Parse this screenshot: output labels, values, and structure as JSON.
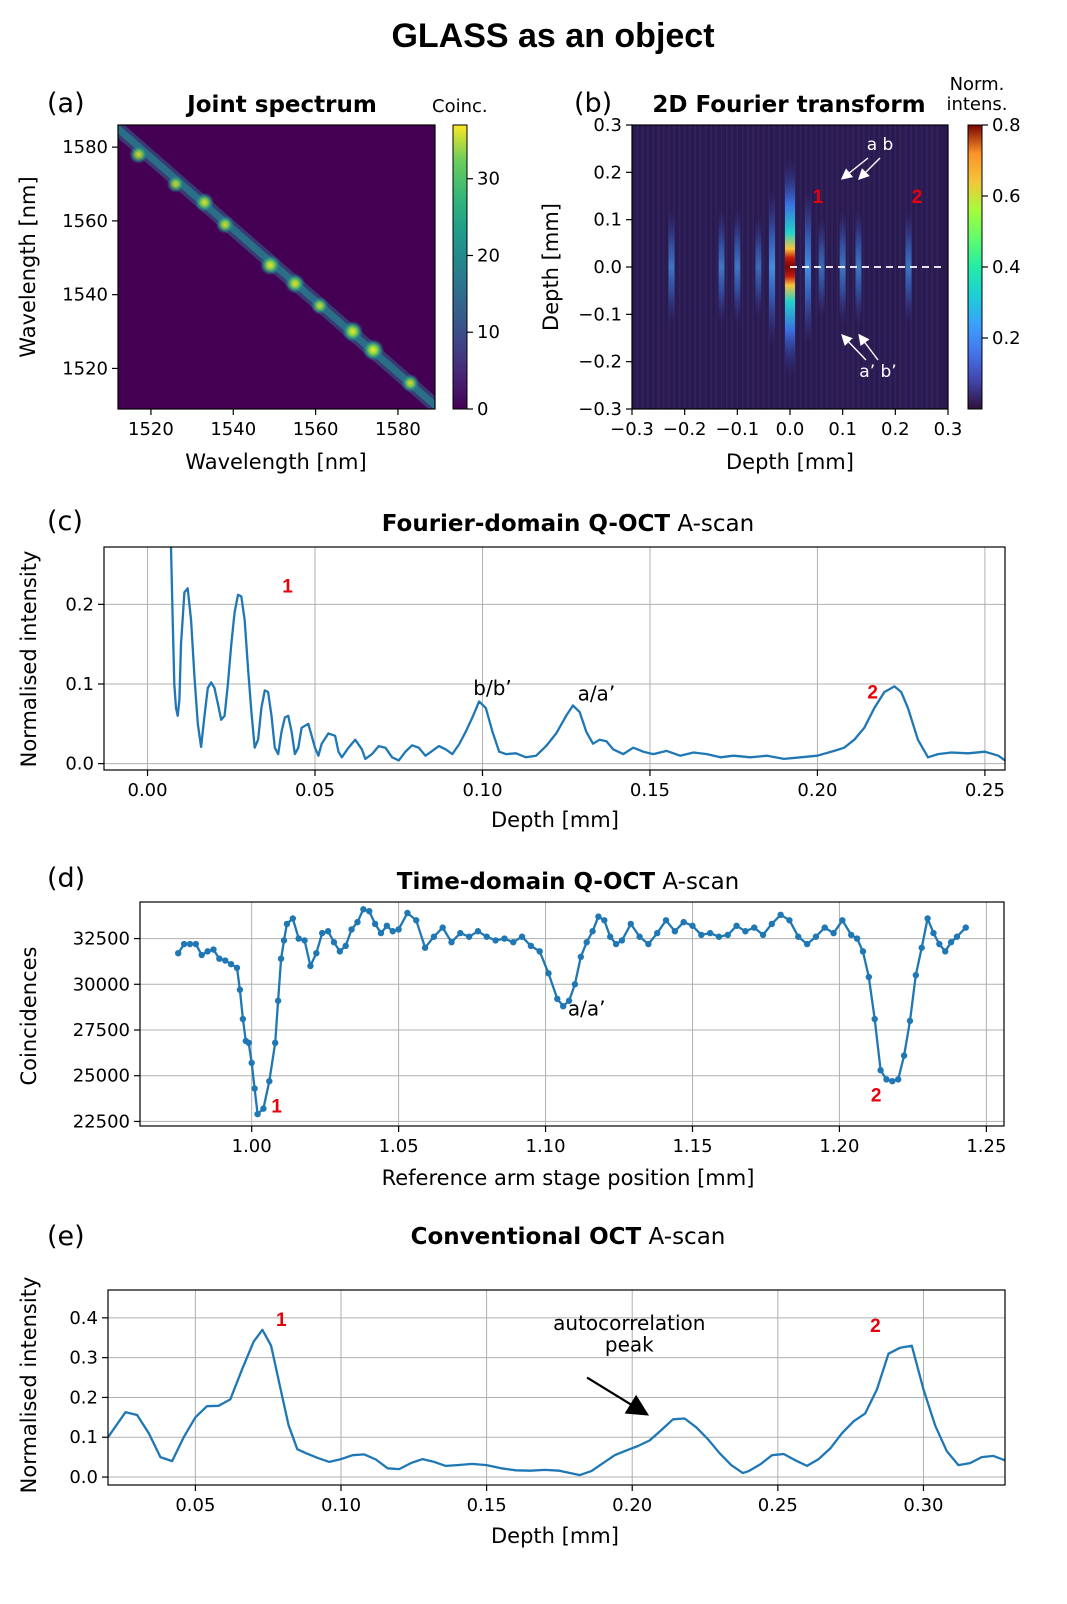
{
  "figure_title": "GLASS as an object",
  "chart_data": [
    {
      "panel": "(a)",
      "type": "heatmap",
      "title": "Joint spectrum",
      "xlabel": "Wavelength [nm]",
      "ylabel": "Wavelength [nm]",
      "xlim": [
        1512,
        1589
      ],
      "ylim": [
        1509,
        1586
      ],
      "xticks": [
        1520,
        1540,
        1560,
        1580
      ],
      "yticks": [
        1520,
        1540,
        1560,
        1580
      ],
      "colorbar": {
        "label": "Coinc.",
        "range": [
          0,
          37
        ],
        "ticks": [
          0,
          10,
          20,
          30
        ],
        "colormap": "viridis"
      },
      "description": "anti-diagonal band of coincidences",
      "band": {
        "from": [
          1512,
          1585
        ],
        "to": [
          1589,
          1510
        ]
      },
      "hotspots": [
        {
          "x": 1517,
          "y": 1578,
          "v": 25
        },
        {
          "x": 1526,
          "y": 1570,
          "v": 22
        },
        {
          "x": 1533,
          "y": 1565,
          "v": 28
        },
        {
          "x": 1538,
          "y": 1559,
          "v": 24
        },
        {
          "x": 1549,
          "y": 1548,
          "v": 32
        },
        {
          "x": 1555,
          "y": 1543,
          "v": 30
        },
        {
          "x": 1561,
          "y": 1537,
          "v": 22
        },
        {
          "x": 1569,
          "y": 1530,
          "v": 34
        },
        {
          "x": 1574,
          "y": 1525,
          "v": 36
        },
        {
          "x": 1583,
          "y": 1516,
          "v": 24
        }
      ]
    },
    {
      "panel": "(b)",
      "type": "heatmap",
      "title": "2D Fourier transform",
      "xlabel": "Depth [mm]",
      "ylabel": "Depth [mm]",
      "xlim": [
        -0.3,
        0.3
      ],
      "ylim": [
        -0.3,
        0.3
      ],
      "xticks": [
        -0.3,
        -0.2,
        -0.1,
        0.0,
        0.1,
        0.2,
        0.3
      ],
      "yticks": [
        -0.3,
        -0.2,
        -0.1,
        0.0,
        0.1,
        0.2,
        0.3
      ],
      "xtick_labels": [
        "−0.3",
        "−0.2",
        "−0.1",
        "0.0",
        "0.1",
        "0.2",
        "0.3"
      ],
      "ytick_labels": [
        "−0.3",
        "−0.2",
        "−0.1",
        "0.0",
        "0.1",
        "0.2",
        "0.3"
      ],
      "colorbar": {
        "label_line1": "Norm.",
        "label_line2": "intens.",
        "range": [
          0,
          0.8
        ],
        "ticks": [
          0.2,
          0.4,
          0.6,
          0.8
        ],
        "colormap": "turbo"
      },
      "stripes": [
        {
          "x": 0.0,
          "v": 0.8
        },
        {
          "x": -0.034,
          "v": 0.2
        },
        {
          "x": 0.034,
          "v": 0.2
        },
        {
          "x": -0.1,
          "v": 0.1
        },
        {
          "x": 0.1,
          "v": 0.1
        },
        {
          "x": -0.13,
          "v": 0.1
        },
        {
          "x": 0.13,
          "v": 0.1
        },
        {
          "x": -0.225,
          "v": 0.1
        },
        {
          "x": 0.225,
          "v": 0.1
        },
        {
          "x": -0.06,
          "v": 0.06
        },
        {
          "x": 0.06,
          "v": 0.06
        }
      ],
      "annotations": {
        "peak1": "1",
        "peak2": "2",
        "top": "a b",
        "bottom": "a’ b’"
      }
    },
    {
      "panel": "(c)",
      "type": "line",
      "title_bold": "Fourier-domain Q-OCT",
      "title_rest": " A-scan",
      "xlabel": "Depth [mm]",
      "ylabel": "Normalised intensity",
      "xlim": [
        -0.013,
        0.256
      ],
      "ylim": [
        -0.008,
        0.272
      ],
      "xticks": [
        0.0,
        0.05,
        0.1,
        0.15,
        0.2,
        0.25
      ],
      "xtick_labels": [
        "0.00",
        "0.05",
        "0.10",
        "0.15",
        "0.20",
        "0.25"
      ],
      "yticks": [
        0.0,
        0.1,
        0.2
      ],
      "ytick_labels": [
        "0.0",
        "0.1",
        "0.2"
      ],
      "grid": true,
      "x": [
        0.007,
        0.0075,
        0.008,
        0.0085,
        0.009,
        0.0095,
        0.01,
        0.011,
        0.012,
        0.013,
        0.014,
        0.015,
        0.016,
        0.017,
        0.018,
        0.019,
        0.02,
        0.021,
        0.022,
        0.023,
        0.024,
        0.025,
        0.026,
        0.027,
        0.028,
        0.029,
        0.03,
        0.031,
        0.032,
        0.033,
        0.034,
        0.035,
        0.036,
        0.037,
        0.038,
        0.039,
        0.04,
        0.041,
        0.042,
        0.043,
        0.044,
        0.045,
        0.046,
        0.048,
        0.05,
        0.051,
        0.052,
        0.054,
        0.056,
        0.057,
        0.058,
        0.06,
        0.062,
        0.064,
        0.065,
        0.067,
        0.069,
        0.071,
        0.073,
        0.075,
        0.077,
        0.079,
        0.081,
        0.083,
        0.085,
        0.087,
        0.089,
        0.091,
        0.093,
        0.095,
        0.097,
        0.099,
        0.101,
        0.103,
        0.105,
        0.107,
        0.11,
        0.113,
        0.116,
        0.119,
        0.122,
        0.125,
        0.127,
        0.129,
        0.131,
        0.133,
        0.135,
        0.137,
        0.139,
        0.142,
        0.145,
        0.148,
        0.151,
        0.155,
        0.159,
        0.163,
        0.167,
        0.171,
        0.175,
        0.18,
        0.185,
        0.19,
        0.195,
        0.2,
        0.205,
        0.208,
        0.211,
        0.214,
        0.217,
        0.22,
        0.223,
        0.225,
        0.227,
        0.23,
        0.233,
        0.236,
        0.24,
        0.245,
        0.25,
        0.254,
        0.256
      ],
      "y": [
        0.272,
        0.18,
        0.1,
        0.07,
        0.06,
        0.08,
        0.15,
        0.215,
        0.22,
        0.18,
        0.11,
        0.05,
        0.021,
        0.06,
        0.095,
        0.102,
        0.095,
        0.075,
        0.055,
        0.06,
        0.1,
        0.15,
        0.19,
        0.212,
        0.21,
        0.18,
        0.12,
        0.065,
        0.02,
        0.03,
        0.07,
        0.092,
        0.09,
        0.06,
        0.02,
        0.012,
        0.04,
        0.058,
        0.06,
        0.04,
        0.012,
        0.02,
        0.045,
        0.05,
        0.02,
        0.01,
        0.025,
        0.038,
        0.035,
        0.015,
        0.008,
        0.02,
        0.03,
        0.018,
        0.006,
        0.012,
        0.022,
        0.02,
        0.008,
        0.004,
        0.015,
        0.023,
        0.02,
        0.01,
        0.016,
        0.022,
        0.018,
        0.012,
        0.024,
        0.04,
        0.058,
        0.078,
        0.07,
        0.04,
        0.015,
        0.012,
        0.013,
        0.008,
        0.01,
        0.022,
        0.038,
        0.06,
        0.073,
        0.065,
        0.04,
        0.025,
        0.03,
        0.028,
        0.018,
        0.012,
        0.02,
        0.015,
        0.012,
        0.016,
        0.01,
        0.014,
        0.012,
        0.008,
        0.01,
        0.008,
        0.01,
        0.006,
        0.008,
        0.01,
        0.016,
        0.02,
        0.03,
        0.045,
        0.07,
        0.09,
        0.097,
        0.09,
        0.07,
        0.03,
        0.008,
        0.012,
        0.014,
        0.013,
        0.015,
        0.01,
        0.004
      ],
      "annotations": [
        {
          "text": "1",
          "x": 0.0418,
          "y": 0.215,
          "style": "red"
        },
        {
          "text": "b/b’",
          "x": 0.103,
          "y": 0.086,
          "style": "black"
        },
        {
          "text": "a/a’",
          "x": 0.134,
          "y": 0.079,
          "style": "black"
        },
        {
          "text": "2",
          "x": 0.2165,
          "y": 0.082,
          "style": "red"
        }
      ]
    },
    {
      "panel": "(d)",
      "type": "line",
      "markers": true,
      "title_bold": "Time-domain Q-OCT",
      "title_rest": " A-scan",
      "xlabel": "Reference arm stage position [mm]",
      "ylabel": "Coincidences",
      "xlim": [
        0.962,
        1.256
      ],
      "ylim": [
        22250,
        34500
      ],
      "xticks": [
        1.0,
        1.05,
        1.1,
        1.15,
        1.2,
        1.25
      ],
      "xtick_labels": [
        "1.00",
        "1.05",
        "1.10",
        "1.15",
        "1.20",
        "1.25"
      ],
      "yticks": [
        22500,
        25000,
        27500,
        30000,
        32500
      ],
      "ytick_labels": [
        "22500",
        "25000",
        "27500",
        "30000",
        "32500"
      ],
      "grid": true,
      "x": [
        0.975,
        0.977,
        0.979,
        0.981,
        0.983,
        0.985,
        0.987,
        0.989,
        0.991,
        0.993,
        0.995,
        0.996,
        0.997,
        0.998,
        0.999,
        1.0,
        1.001,
        1.002,
        1.004,
        1.006,
        1.008,
        1.009,
        1.01,
        1.011,
        1.012,
        1.014,
        1.016,
        1.018,
        1.02,
        1.022,
        1.024,
        1.026,
        1.028,
        1.03,
        1.032,
        1.034,
        1.036,
        1.038,
        1.04,
        1.042,
        1.044,
        1.046,
        1.048,
        1.05,
        1.053,
        1.056,
        1.059,
        1.062,
        1.065,
        1.068,
        1.071,
        1.074,
        1.077,
        1.08,
        1.083,
        1.086,
        1.089,
        1.092,
        1.095,
        1.098,
        1.101,
        1.104,
        1.106,
        1.108,
        1.11,
        1.112,
        1.114,
        1.116,
        1.118,
        1.12,
        1.122,
        1.124,
        1.126,
        1.129,
        1.132,
        1.135,
        1.138,
        1.141,
        1.144,
        1.147,
        1.15,
        1.153,
        1.156,
        1.159,
        1.162,
        1.165,
        1.168,
        1.171,
        1.174,
        1.177,
        1.18,
        1.183,
        1.186,
        1.189,
        1.192,
        1.195,
        1.198,
        1.201,
        1.204,
        1.206,
        1.208,
        1.21,
        1.212,
        1.214,
        1.216,
        1.218,
        1.22,
        1.222,
        1.224,
        1.226,
        1.228,
        1.23,
        1.232,
        1.234,
        1.236,
        1.238,
        1.24,
        1.243
      ],
      "y": [
        31700,
        32200,
        32200,
        32200,
        31600,
        31800,
        31900,
        31400,
        31300,
        31100,
        30900,
        29700,
        28100,
        26900,
        26800,
        25700,
        24300,
        22900,
        23200,
        24700,
        26800,
        29100,
        31400,
        32400,
        33300,
        33600,
        32500,
        32400,
        31000,
        31700,
        32800,
        32900,
        32300,
        31800,
        32100,
        33000,
        33400,
        34100,
        34000,
        33300,
        32800,
        33200,
        32900,
        33000,
        33900,
        33500,
        32000,
        32600,
        33100,
        32300,
        32800,
        32600,
        32900,
        32600,
        32400,
        32500,
        32300,
        32600,
        32100,
        31800,
        30600,
        29200,
        28800,
        29100,
        30000,
        31500,
        32300,
        32900,
        33700,
        33500,
        32600,
        32200,
        32400,
        33300,
        32600,
        32200,
        32800,
        33500,
        32900,
        33400,
        33200,
        32700,
        32800,
        32600,
        32700,
        33200,
        32900,
        33100,
        32700,
        33300,
        33800,
        33500,
        32600,
        32200,
        32600,
        33100,
        32800,
        33500,
        32700,
        32500,
        31800,
        30400,
        28100,
        25300,
        24800,
        24700,
        24800,
        26100,
        28000,
        30500,
        32000,
        33600,
        32800,
        32200,
        31800,
        32300,
        32600,
        33100
      ],
      "annotations": [
        {
          "text": "1",
          "x": 1.0085,
          "y": 23000,
          "style": "red"
        },
        {
          "text": "a/a’",
          "x": 1.114,
          "y": 28300,
          "style": "black"
        },
        {
          "text": "2",
          "x": 1.2125,
          "y": 23600,
          "style": "red"
        }
      ]
    },
    {
      "panel": "(e)",
      "type": "line",
      "title_bold": "Conventional OCT",
      "title_rest": " A-scan",
      "xlabel": "Depth [mm]",
      "ylabel": "Normalised intensity",
      "xlim": [
        0.02,
        0.328
      ],
      "ylim": [
        -0.02,
        0.47
      ],
      "xticks": [
        0.05,
        0.1,
        0.15,
        0.2,
        0.25,
        0.3
      ],
      "xtick_labels": [
        "0.05",
        "0.10",
        "0.15",
        "0.20",
        "0.25",
        "0.30"
      ],
      "yticks": [
        0.0,
        0.1,
        0.2,
        0.3,
        0.4
      ],
      "ytick_labels": [
        "0.0",
        "0.1",
        "0.2",
        "0.3",
        "0.4"
      ],
      "grid": true,
      "x": [
        0.02,
        0.026,
        0.03,
        0.034,
        0.038,
        0.042,
        0.046,
        0.05,
        0.054,
        0.058,
        0.062,
        0.066,
        0.07,
        0.073,
        0.076,
        0.079,
        0.082,
        0.085,
        0.088,
        0.092,
        0.096,
        0.1,
        0.104,
        0.108,
        0.112,
        0.116,
        0.12,
        0.124,
        0.128,
        0.132,
        0.136,
        0.14,
        0.145,
        0.15,
        0.155,
        0.16,
        0.165,
        0.17,
        0.175,
        0.18,
        0.182,
        0.186,
        0.19,
        0.194,
        0.198,
        0.202,
        0.206,
        0.21,
        0.214,
        0.218,
        0.222,
        0.226,
        0.23,
        0.234,
        0.238,
        0.24,
        0.244,
        0.248,
        0.252,
        0.256,
        0.26,
        0.264,
        0.268,
        0.272,
        0.276,
        0.28,
        0.284,
        0.288,
        0.292,
        0.296,
        0.3,
        0.304,
        0.308,
        0.312,
        0.316,
        0.32,
        0.324,
        0.328
      ],
      "y": [
        0.1,
        0.163,
        0.156,
        0.11,
        0.05,
        0.04,
        0.1,
        0.15,
        0.178,
        0.179,
        0.195,
        0.27,
        0.34,
        0.37,
        0.33,
        0.23,
        0.13,
        0.07,
        0.06,
        0.048,
        0.038,
        0.045,
        0.055,
        0.057,
        0.044,
        0.022,
        0.02,
        0.035,
        0.045,
        0.038,
        0.028,
        0.03,
        0.033,
        0.03,
        0.022,
        0.017,
        0.016,
        0.018,
        0.016,
        0.008,
        0.005,
        0.015,
        0.035,
        0.055,
        0.067,
        0.078,
        0.092,
        0.118,
        0.145,
        0.147,
        0.125,
        0.095,
        0.06,
        0.03,
        0.01,
        0.015,
        0.032,
        0.055,
        0.058,
        0.042,
        0.028,
        0.045,
        0.072,
        0.11,
        0.14,
        0.16,
        0.22,
        0.31,
        0.325,
        0.33,
        0.22,
        0.13,
        0.065,
        0.03,
        0.035,
        0.05,
        0.053,
        0.042
      ],
      "annotations": [
        {
          "text": "1",
          "x": 0.0795,
          "y": 0.38,
          "style": "red"
        },
        {
          "text": "2",
          "x": 0.2835,
          "y": 0.365,
          "style": "red"
        },
        {
          "text": "autocorrelation",
          "x": 0.199,
          "y": 0.37,
          "style": "black"
        },
        {
          "text": "peak",
          "x": 0.199,
          "y": 0.315,
          "style": "black"
        }
      ],
      "arrow": {
        "from": [
          0.1845,
          0.25
        ],
        "to": [
          0.2045,
          0.16
        ]
      }
    }
  ]
}
